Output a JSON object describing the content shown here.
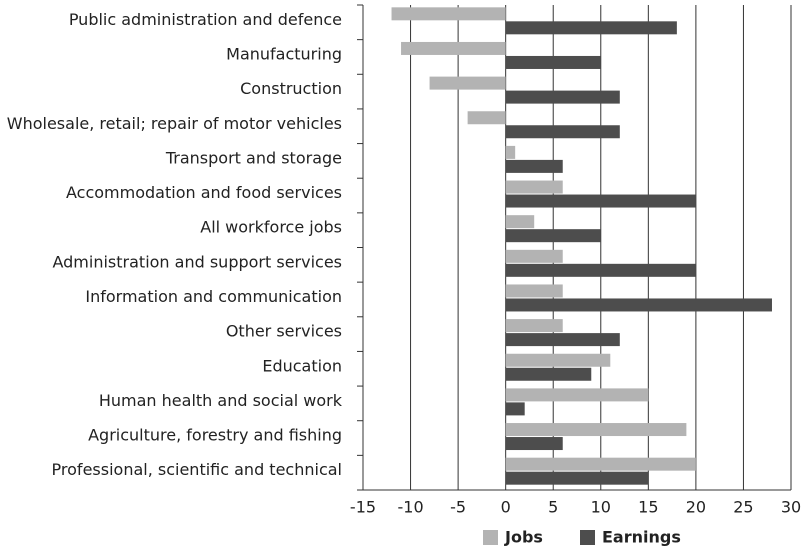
{
  "chart_data": {
    "type": "hbar",
    "categories": [
      "Public administration and defence",
      "Manufacturing",
      "Construction",
      "Wholesale, retail; repair of motor vehicles",
      "Transport and storage",
      "Accommodation and food services",
      "All workforce jobs",
      "Administration and support services",
      "Information and communication",
      "Other services",
      "Education",
      "Human health and social work",
      "Agriculture, forestry and fishing",
      "Professional, scientific and technical"
    ],
    "series": [
      {
        "name": "Jobs",
        "color": "#b3b3b3",
        "values": [
          -12,
          -11,
          -8,
          -4,
          1,
          6,
          3,
          6,
          6,
          6,
          11,
          15,
          19,
          20
        ]
      },
      {
        "name": "Earnings",
        "color": "#4d4d4d",
        "values": [
          18,
          10,
          12,
          12,
          6,
          20,
          10,
          20,
          28,
          12,
          9,
          2,
          6,
          15
        ]
      }
    ],
    "xlim": [
      -15,
      30
    ],
    "xticks": [
      -15,
      -10,
      -5,
      0,
      5,
      10,
      15,
      20,
      25,
      30
    ],
    "grid": true
  }
}
